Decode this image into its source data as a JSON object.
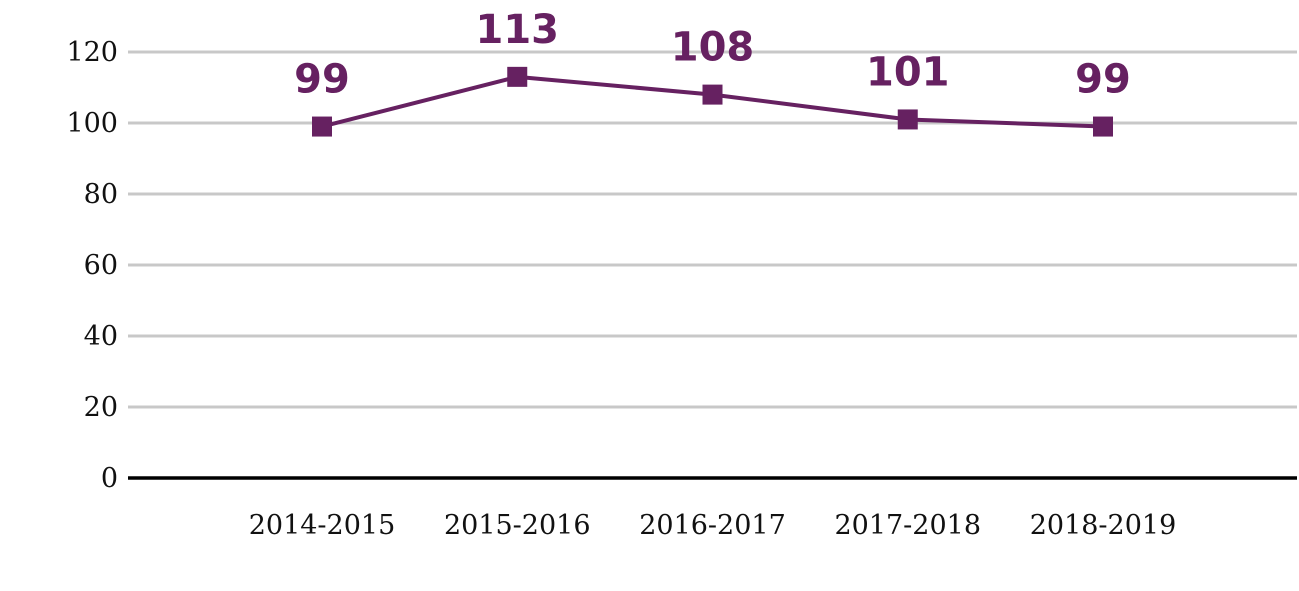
{
  "chart_data": {
    "type": "line",
    "categories": [
      "2014-2015",
      "2015-2016",
      "2016-2017",
      "2017-2018",
      "2018-2019"
    ],
    "series": [
      {
        "values": [
          99,
          113,
          108,
          101,
          99
        ]
      }
    ],
    "data_labels": [
      "99",
      "113",
      "108",
      "101",
      "99"
    ],
    "ylim": [
      0,
      120
    ],
    "yticks": [
      "0",
      "20",
      "40",
      "60",
      "80",
      "100",
      "120"
    ],
    "grid": true,
    "marker": "square",
    "line_color": "#662161",
    "label_color": "#662161",
    "grid_color": "#c8c8c8",
    "axis_color": "#000000"
  }
}
